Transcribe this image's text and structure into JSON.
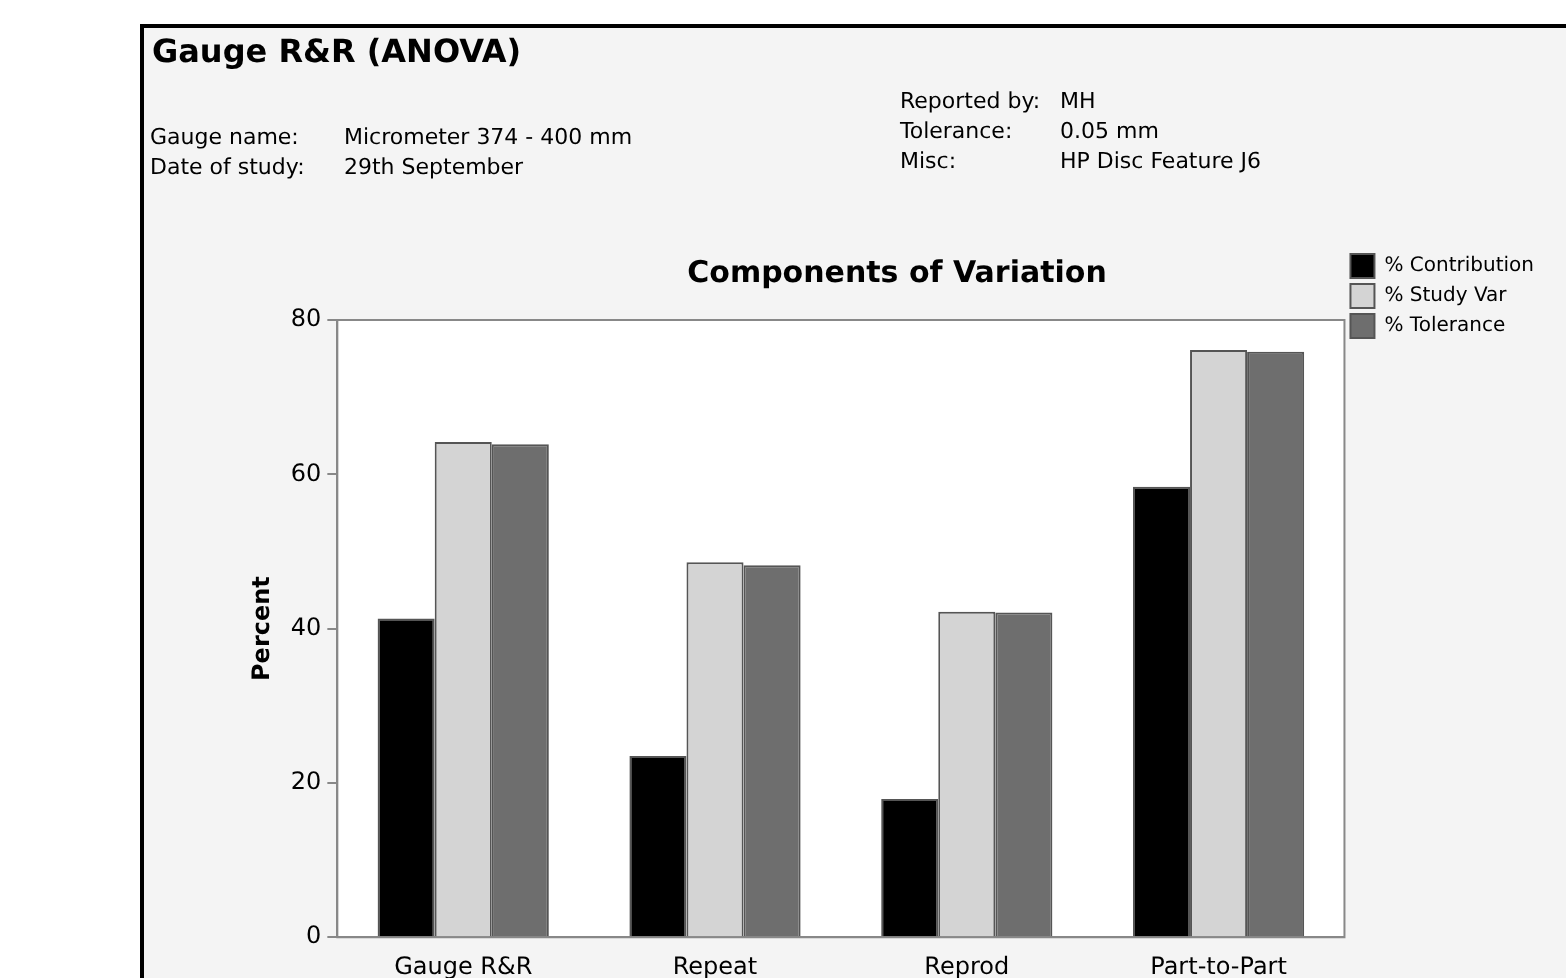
{
  "chart_data": {
    "type": "bar",
    "title": "Gauge R&R (ANOVA)",
    "subtitle": "Components of Variation",
    "ylabel": "Percent",
    "annotations": [
      "Gauge name:",
      "Micrometer 374 - 400 mm",
      "Date of study:",
      "29th September",
      "Reported by:",
      "MH",
      "Tolerance:",
      "0.05 mm",
      "Misc:",
      "HP Disc Feature J6"
    ],
    "categories": [
      "Gauge R&R",
      "Repeat",
      "Reprod",
      "Part-to-Part"
    ],
    "series": [
      {
        "name": "% Contribution",
        "color": "#000000",
        "values": [
          41.3,
          23.5,
          17.9,
          58.4
        ]
      },
      {
        "name": "% Study Var",
        "color": "#d4d4d4",
        "values": [
          64.2,
          48.6,
          42.2,
          76.1
        ]
      },
      {
        "name": "% Tolerance",
        "color": "#6e6e6e",
        "values": [
          63.9,
          48.2,
          42.1,
          75.9
        ]
      }
    ],
    "ylim": [
      0,
      80
    ],
    "yticks": [
      0,
      20,
      40,
      60,
      80
    ],
    "grid": false,
    "legend": "top right"
  }
}
